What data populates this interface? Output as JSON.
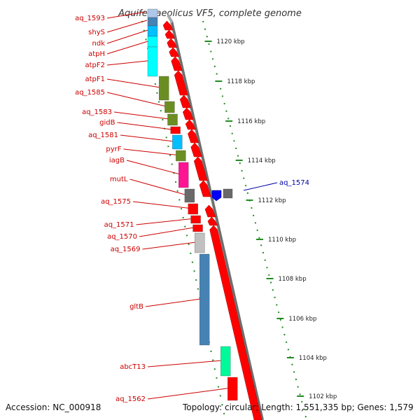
{
  "title": "Aquifex aeolicus VF5, complete genome",
  "footer": {
    "accession": "Accession: NC_000918",
    "summary": "Topology: circular; Length: 1,551,335 bp; Genes: 1,579"
  },
  "colors": {
    "forward_gene": "#ff0000",
    "reverse_gene": "#0000ff",
    "label_red": "#cc0000",
    "label_blue": "#0000aa",
    "tick_green": "#228b22",
    "backbone": "#888888"
  },
  "scale_labels": [
    "1120 kbp",
    "1118 kbp",
    "1116 kbp",
    "1114 kbp",
    "1112 kbp",
    "1110 kbp",
    "1108 kbp",
    "1106 kbp",
    "1104 kbp",
    "1102 kbp"
  ],
  "genes": [
    {
      "name": "aq_1593",
      "color": "#aec7e8"
    },
    {
      "name": "shyS",
      "color": "#4682b4"
    },
    {
      "name": "ndk",
      "color": "#00bfff"
    },
    {
      "name": "atpH",
      "color": "#00ffff"
    },
    {
      "name": "atpF2",
      "color": "#00ffff"
    },
    {
      "name": "atpF1",
      "color": "#6b8e23"
    },
    {
      "name": "aq_1585",
      "color": "#6b8e23"
    },
    {
      "name": "aq_1583",
      "color": "#6b8e23"
    },
    {
      "name": "gidB",
      "color": "#ff0000"
    },
    {
      "name": "aq_1581",
      "color": "#00bfff"
    },
    {
      "name": "pyrF",
      "color": "#6b8e23"
    },
    {
      "name": "iagB",
      "color": "#ff1493"
    },
    {
      "name": "mutL",
      "color": "#696969"
    },
    {
      "name": "aq_1575",
      "color": "#ff0000"
    },
    {
      "name": "aq_1571",
      "color": "#ff0000"
    },
    {
      "name": "aq_1570",
      "color": "#ff0000"
    },
    {
      "name": "aq_1569",
      "color": "#c0c0c0"
    },
    {
      "name": "gltB",
      "color": "#4682b4"
    },
    {
      "name": "abcT13",
      "color": "#00fa9a"
    },
    {
      "name": "aq_1562",
      "color": "#ff0000"
    }
  ],
  "reverse_genes": [
    {
      "name": "aq_1574",
      "color": "#0000ff"
    }
  ]
}
